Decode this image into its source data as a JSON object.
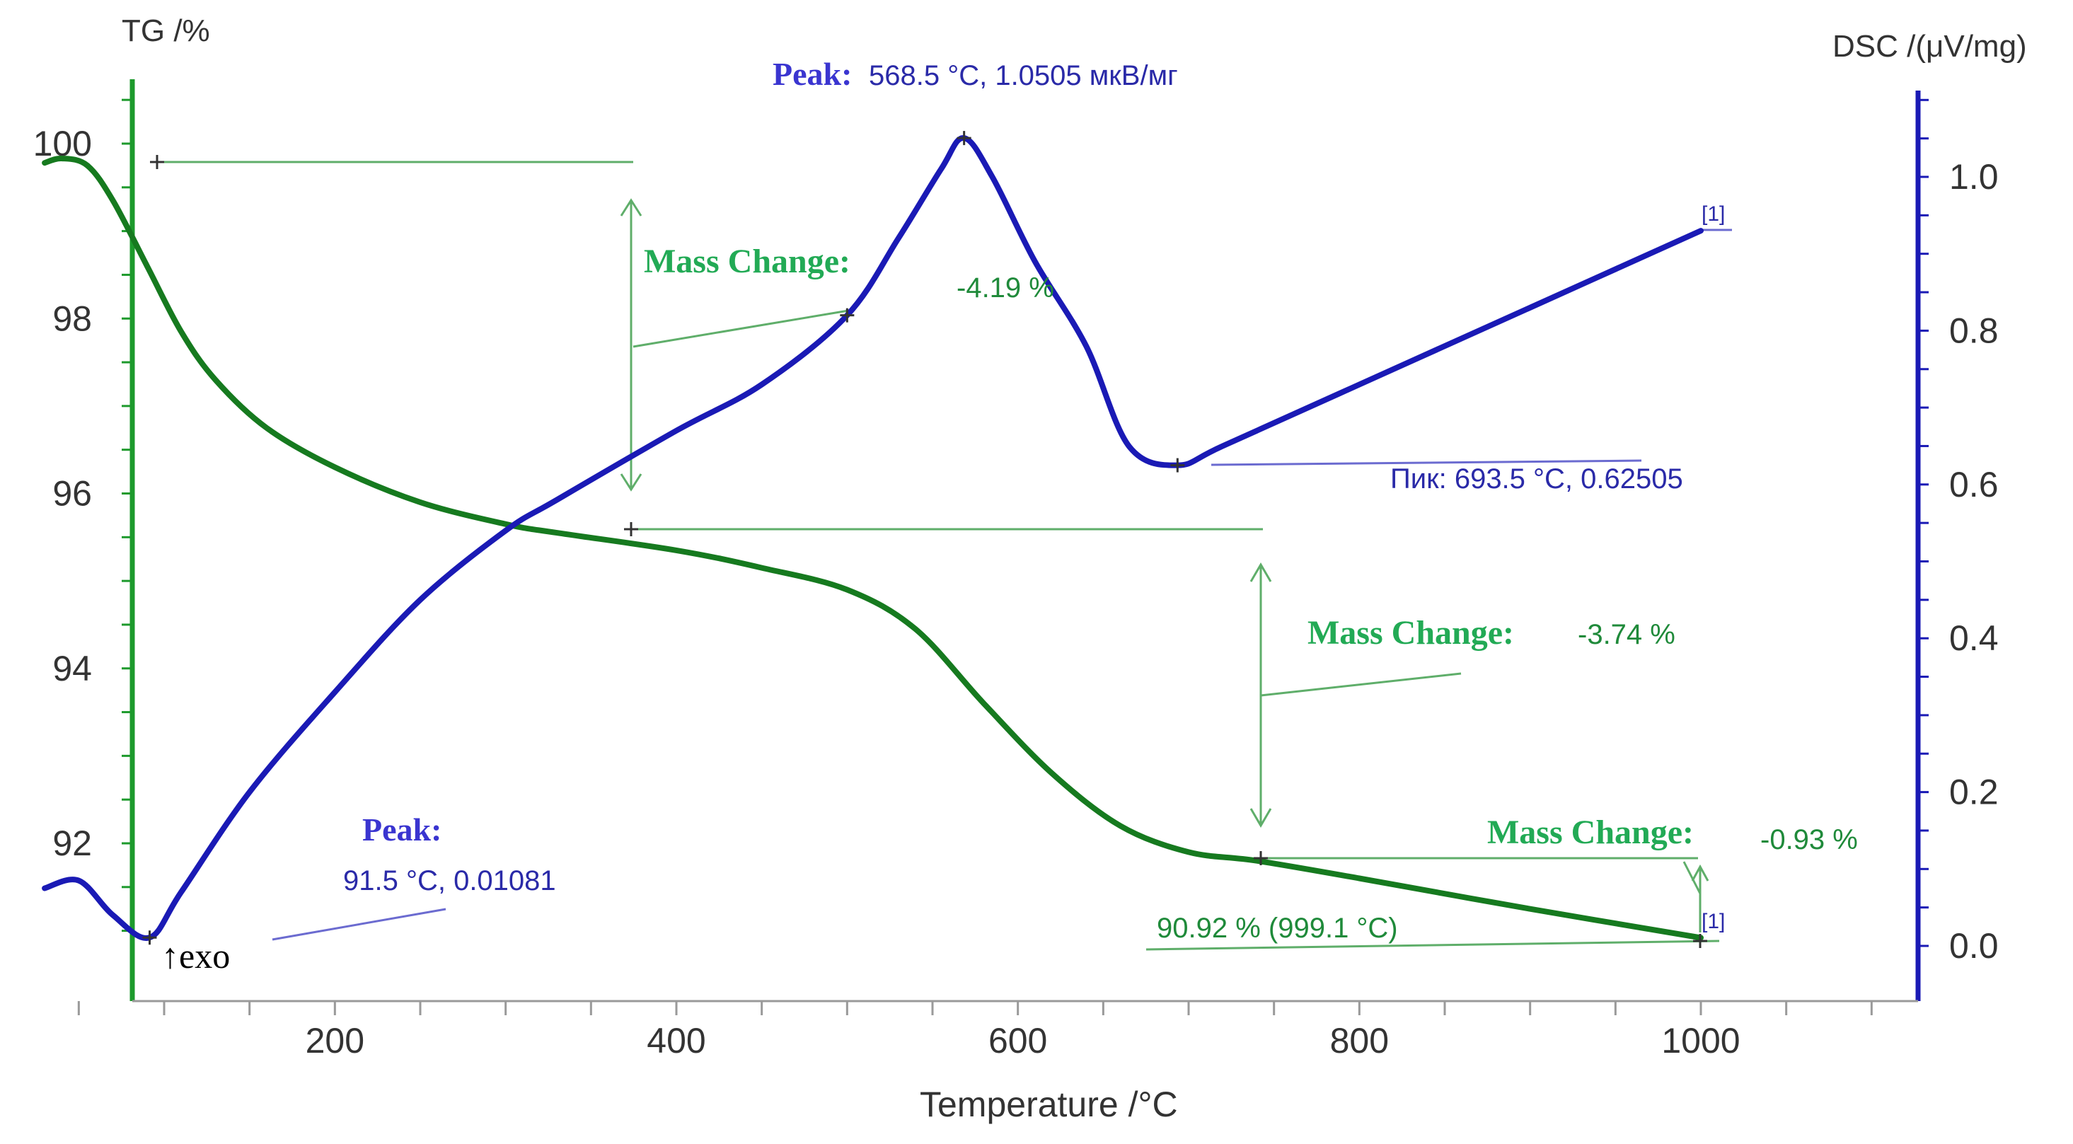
{
  "chart_data": {
    "type": "line",
    "xlabel": "Temperature /°C",
    "x_ticks": [
      200,
      400,
      600,
      800,
      1000
    ],
    "xlim": [
      25,
      1145
    ],
    "left_axis": {
      "label": "TG /%",
      "ylim": [
        90.5,
        100.8
      ],
      "ticks": [
        92,
        94,
        96,
        98,
        100
      ]
    },
    "right_axis": {
      "label": "DSC /(μV/mg)",
      "ylim": [
        -0.03,
        1.12
      ],
      "ticks": [
        "0.0",
        "0.2",
        "0.4",
        "0.6",
        "0.8",
        "1.0"
      ]
    },
    "colors": {
      "tg": "#167a1f",
      "dsc": "#1a1ab5",
      "guide": "#5fae6a",
      "blue_guide": "#6b6bd0"
    },
    "series": [
      {
        "name": "TG",
        "axis": "left",
        "x": [
          30,
          40,
          55,
          70,
          90,
          110,
          130,
          160,
          200,
          250,
          300,
          330,
          400,
          450,
          500,
          540,
          580,
          620,
          660,
          700,
          740,
          800,
          900,
          1000
        ],
        "y": [
          99.78,
          99.83,
          99.75,
          99.35,
          98.6,
          97.85,
          97.3,
          96.75,
          96.3,
          95.9,
          95.65,
          95.55,
          95.35,
          95.15,
          94.9,
          94.45,
          93.6,
          92.8,
          92.2,
          91.9,
          91.8,
          91.6,
          91.25,
          90.92
        ]
      },
      {
        "name": "DSC",
        "axis": "right",
        "x": [
          30,
          50,
          70,
          91.5,
          110,
          150,
          200,
          250,
          300,
          330,
          400,
          450,
          500,
          530,
          555,
          568.5,
          585,
          610,
          640,
          665,
          693.5,
          720,
          800,
          900,
          1000
        ],
        "y": [
          0.075,
          0.085,
          0.04,
          0.01081,
          0.07,
          0.2,
          0.33,
          0.45,
          0.54,
          0.58,
          0.67,
          0.73,
          0.82,
          0.92,
          1.01,
          1.0505,
          1.0,
          0.89,
          0.78,
          0.65,
          0.62505,
          0.65,
          0.73,
          0.83,
          0.93
        ]
      }
    ],
    "annotations": {
      "peak_top_label": "Peak:",
      "peak_top_value": "568.5 °C, 1.0505 мкВ/мг",
      "peak_bottom_label": "Peak:",
      "peak_bottom_value": "91.5 °C, 0.01081",
      "pik_label": "Пик: 693.5 °C, 0.62505",
      "mass_change_label_1": "Mass Change:",
      "mass_change_value_1": "-4.19 %",
      "mass_change_label_2": "Mass Change:",
      "mass_change_value_2": "-3.74 %",
      "mass_change_label_3": "Mass Change:",
      "mass_change_value_3": "-0.93 %",
      "residual_mass": "90.92 % (999.1 °C)",
      "curve_marker_dsc": "[1]",
      "curve_marker_tg": "[1]",
      "exo_label": "↑exo"
    }
  }
}
